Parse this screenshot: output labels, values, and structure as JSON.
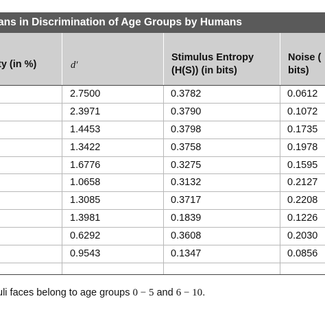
{
  "table": {
    "title": "ans in Discrimination of Age Groups by Humans",
    "headers": {
      "col1": "ty (in %)",
      "col2": "d′",
      "col3_line1": "Stimulus Entropy",
      "col3_line2": "(H(S)) (in bits)",
      "col4_line1": "Noise (",
      "col4_line2": "bits)"
    },
    "rows": [
      {
        "d": "2.7500",
        "hs": "0.3782",
        "noise": "0.0612"
      },
      {
        "d": "2.3971",
        "hs": "0.3790",
        "noise": "0.1072"
      },
      {
        "d": "1.4453",
        "hs": "0.3798",
        "noise": "0.1735"
      },
      {
        "d": "1.3422",
        "hs": "0.3758",
        "noise": "0.1978"
      },
      {
        "d": "1.6776",
        "hs": "0.3275",
        "noise": "0.1595"
      },
      {
        "d": "1.0658",
        "hs": "0.3132",
        "noise": "0.2127"
      },
      {
        "d": "1.3085",
        "hs": "0.3717",
        "noise": "0.2208"
      },
      {
        "d": "1.3981",
        "hs": "0.1839",
        "noise": "0.1226"
      },
      {
        "d": "0.6292",
        "hs": "0.3608",
        "noise": "0.2030"
      },
      {
        "d": "0.9543",
        "hs": "0.1347",
        "noise": "0.0856"
      }
    ]
  },
  "footnote": {
    "prefix": "uli faces belong to age groups ",
    "range1": "0 − 5",
    "middle": " and ",
    "range2": "6 − 10",
    "suffix": "."
  }
}
